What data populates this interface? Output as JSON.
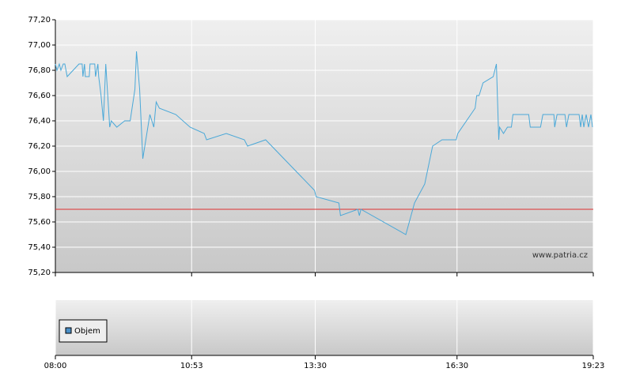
{
  "chart_data": {
    "type": "line",
    "x": [
      480,
      482,
      485,
      487,
      490,
      492,
      495,
      510,
      514,
      515,
      517,
      518,
      523,
      524,
      530,
      531,
      534,
      535,
      538,
      541,
      544,
      547,
      549,
      551,
      558,
      568,
      575,
      581,
      583,
      587,
      591,
      600,
      605,
      608,
      612,
      633,
      651,
      669,
      672,
      697,
      720,
      724,
      747,
      809,
      811,
      840,
      842,
      864,
      866,
      868,
      925,
      936,
      949,
      959,
      971,
      989,
      991,
      1013,
      1015,
      1018,
      1023,
      1036,
      1040,
      1043,
      1044,
      1049,
      1054,
      1059,
      1061,
      1081,
      1083,
      1096,
      1099,
      1113,
      1114,
      1117,
      1127,
      1129,
      1132,
      1145,
      1147,
      1149,
      1151,
      1154,
      1157,
      1160,
      1162
    ],
    "series": [
      {
        "color": "#4aa8d8",
        "values": [
          76.85,
          76.8,
          76.85,
          76.8,
          76.85,
          76.85,
          76.75,
          76.85,
          76.85,
          76.75,
          76.85,
          76.75,
          76.75,
          76.85,
          76.85,
          76.75,
          76.85,
          76.75,
          76.6,
          76.4,
          76.85,
          76.55,
          76.35,
          76.4,
          76.35,
          76.4,
          76.4,
          76.65,
          76.95,
          76.65,
          76.1,
          76.45,
          76.35,
          76.55,
          76.5,
          76.45,
          76.35,
          76.3,
          76.25,
          76.3,
          76.25,
          76.2,
          76.25,
          75.85,
          75.8,
          75.75,
          75.65,
          75.7,
          75.65,
          75.7,
          75.5,
          75.75,
          75.9,
          76.2,
          76.25,
          76.25,
          76.3,
          76.5,
          76.6,
          76.6,
          76.7,
          76.75,
          76.85,
          76.25,
          76.35,
          76.3,
          76.35,
          76.35,
          76.45,
          76.45,
          76.35,
          76.35,
          76.45,
          76.45,
          76.35,
          76.45,
          76.45,
          76.35,
          76.45,
          76.45,
          76.35,
          76.45,
          76.35,
          76.45,
          76.35,
          76.45,
          76.35
        ]
      }
    ],
    "reference_line": 75.7,
    "reference_color": "#e03030",
    "xlim": [
      480,
      1163
    ],
    "xticks": [
      {
        "value": 480,
        "label": "08:00"
      },
      {
        "value": 653,
        "label": "10:53"
      },
      {
        "value": 810,
        "label": "13:30"
      },
      {
        "value": 990,
        "label": "16:30"
      },
      {
        "value": 1163,
        "label": "19:23"
      }
    ],
    "ylim": [
      75.2,
      77.2
    ],
    "yticks": [
      {
        "value": 75.2,
        "label": "75,20"
      },
      {
        "value": 75.4,
        "label": "75,40"
      },
      {
        "value": 75.6,
        "label": "75,60"
      },
      {
        "value": 75.8,
        "label": "75,80"
      },
      {
        "value": 76.0,
        "label": "76,00"
      },
      {
        "value": 76.2,
        "label": "76,20"
      },
      {
        "value": 76.4,
        "label": "76,40"
      },
      {
        "value": 76.6,
        "label": "76,60"
      },
      {
        "value": 76.8,
        "label": "76,80"
      },
      {
        "value": 77.0,
        "label": "77,00"
      },
      {
        "value": 77.2,
        "label": "77,20"
      }
    ],
    "grid": true,
    "watermark": "www.patria.cz",
    "volume_legend": "Objem",
    "volume_color": "#4a90c8"
  }
}
